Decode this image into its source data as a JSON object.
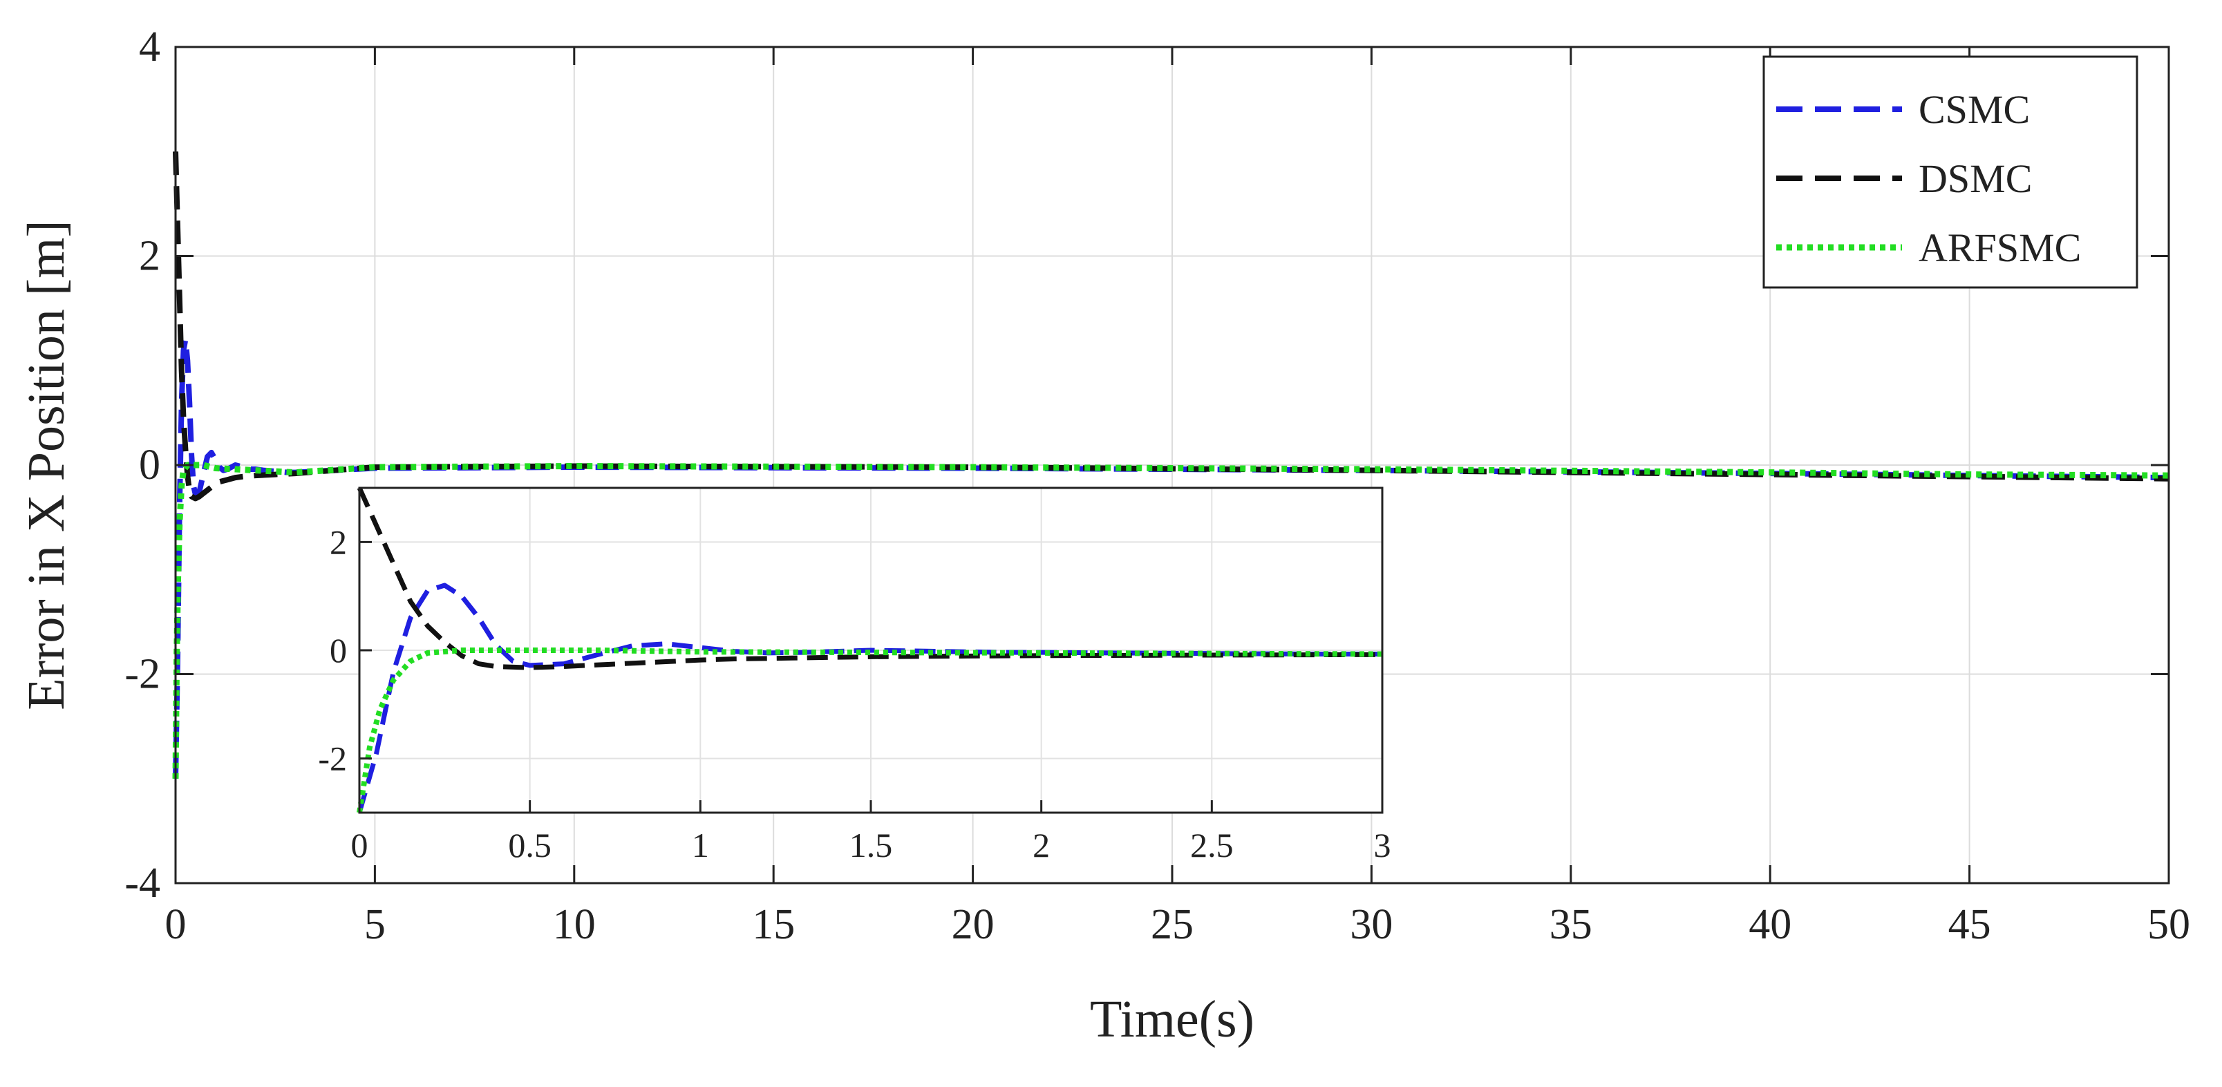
{
  "chart_data": {
    "type": "line",
    "xlabel": "Time(s)",
    "ylabel": "Error in X Position [m]",
    "xlim": [
      0,
      50
    ],
    "ylim": [
      -4,
      4
    ],
    "xticks": [
      "0",
      "5",
      "10",
      "15",
      "20",
      "25",
      "30",
      "35",
      "40",
      "45",
      "50"
    ],
    "yticks": [
      "-4",
      "-2",
      "0",
      "2",
      "4"
    ],
    "grid": true,
    "legend_position": "top-right",
    "series": [
      {
        "name": "CSMC",
        "color": "#1f1fe0",
        "style": "dashed",
        "x": [
          0,
          0.05,
          0.1,
          0.15,
          0.2,
          0.25,
          0.3,
          0.35,
          0.4,
          0.45,
          0.5,
          0.6,
          0.7,
          0.8,
          0.9,
          1.0,
          1.1,
          1.2,
          1.3,
          1.5,
          1.7,
          1.9,
          2.0,
          2.2,
          2.5,
          2.8,
          3.0,
          5,
          10,
          20,
          30,
          40,
          45,
          50
        ],
        "y": [
          -3.0,
          -1.9,
          -0.4,
          0.6,
          1.1,
          1.2,
          1.0,
          0.6,
          0.1,
          -0.2,
          -0.28,
          -0.25,
          -0.08,
          0.08,
          0.12,
          0.05,
          -0.02,
          -0.05,
          -0.04,
          0.0,
          -0.02,
          -0.04,
          -0.04,
          -0.05,
          -0.06,
          -0.07,
          -0.07,
          -0.03,
          -0.02,
          -0.03,
          -0.05,
          -0.08,
          -0.1,
          -0.12
        ]
      },
      {
        "name": "DSMC",
        "color": "#111111",
        "style": "dashed",
        "x": [
          0,
          0.05,
          0.1,
          0.15,
          0.2,
          0.25,
          0.3,
          0.35,
          0.4,
          0.5,
          0.6,
          0.7,
          0.8,
          0.9,
          1.0,
          1.1,
          1.2,
          1.3,
          1.5,
          1.7,
          2.0,
          2.5,
          3.0,
          5,
          10,
          20,
          30,
          40,
          45,
          50
        ],
        "y": [
          3.0,
          2.3,
          1.6,
          0.9,
          0.45,
          0.15,
          -0.1,
          -0.25,
          -0.3,
          -0.32,
          -0.3,
          -0.27,
          -0.24,
          -0.21,
          -0.18,
          -0.16,
          -0.15,
          -0.14,
          -0.12,
          -0.11,
          -0.1,
          -0.09,
          -0.08,
          -0.02,
          -0.01,
          -0.02,
          -0.05,
          -0.09,
          -0.11,
          -0.13
        ]
      },
      {
        "name": "ARFSMC",
        "color": "#22dd22",
        "style": "dotted",
        "x": [
          0,
          0.03,
          0.06,
          0.1,
          0.15,
          0.2,
          0.3,
          0.4,
          0.5,
          0.7,
          1.0,
          1.5,
          2.0,
          2.5,
          3.0,
          5,
          10,
          20,
          30,
          40,
          45,
          50
        ],
        "y": [
          -3.0,
          -1.8,
          -1.1,
          -0.55,
          -0.2,
          -0.05,
          0.0,
          0.0,
          0.0,
          0.0,
          -0.03,
          -0.04,
          -0.05,
          -0.06,
          -0.07,
          -0.02,
          -0.01,
          -0.02,
          -0.04,
          -0.07,
          -0.09,
          -0.1
        ]
      }
    ],
    "inset": {
      "xlim": [
        0,
        3
      ],
      "ylim": [
        -3,
        3
      ],
      "xticks": [
        "0",
        "0.5",
        "1",
        "1.5",
        "2",
        "2.5",
        "3"
      ],
      "yticks": [
        "-2",
        "0",
        "2"
      ]
    }
  }
}
